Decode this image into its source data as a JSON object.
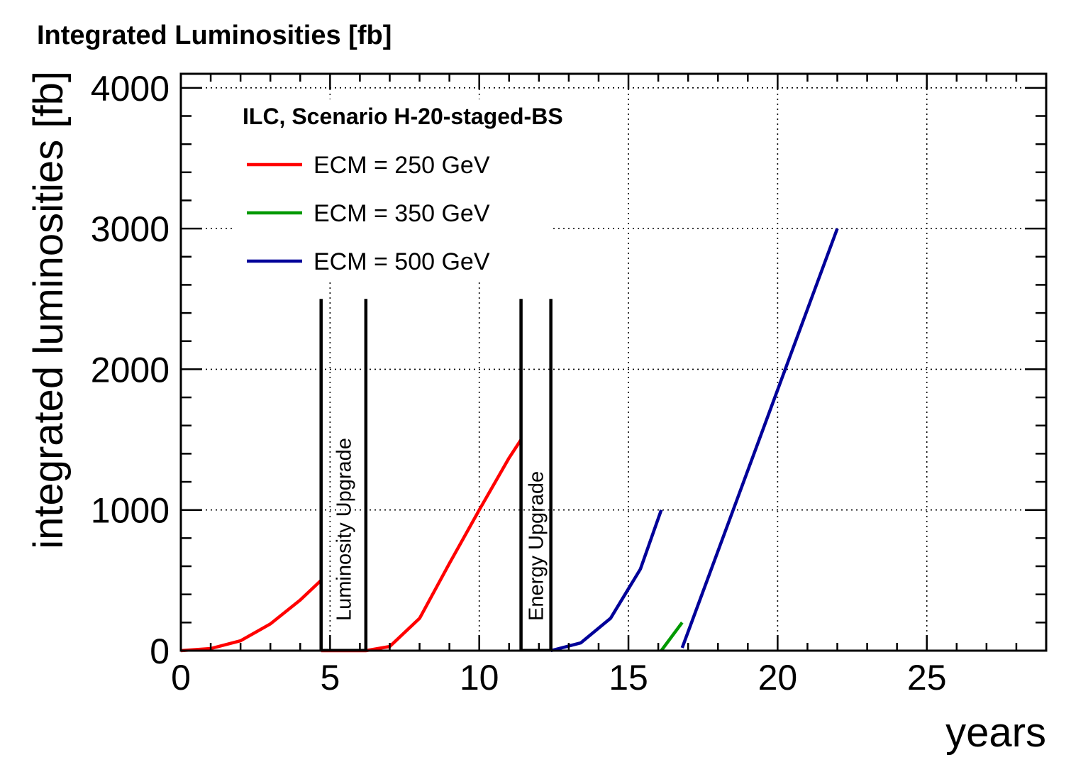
{
  "chart_data": {
    "type": "line",
    "title": "Integrated Luminosities  [fb]",
    "xlabel": "years",
    "ylabel": "integrated luminosities  [fb]",
    "xlim": [
      0,
      29
    ],
    "ylim": [
      0,
      4100
    ],
    "x_ticks": [
      0,
      5,
      10,
      15,
      20,
      25
    ],
    "y_ticks": [
      0,
      1000,
      2000,
      3000,
      4000
    ],
    "grid": true,
    "legend_title": "ILC, Scenario H-20-staged-BS",
    "legend_position": "top-left",
    "series": [
      {
        "name": "ECM = 250 GeV",
        "color": "#ff0000",
        "segments": [
          [
            [
              0,
              0
            ],
            [
              1,
              15
            ],
            [
              2,
              70
            ],
            [
              3,
              190
            ],
            [
              4,
              360
            ],
            [
              4.7,
              500
            ]
          ],
          [
            [
              4.7,
              0
            ],
            [
              6.2,
              0
            ],
            [
              7,
              30
            ],
            [
              8,
              230
            ],
            [
              9,
              620
            ],
            [
              10,
              1000
            ],
            [
              11,
              1370
            ],
            [
              11.4,
              1500
            ]
          ]
        ]
      },
      {
        "name": "ECM = 350 GeV",
        "color": "#009900",
        "segments": [
          [
            [
              16.1,
              0
            ],
            [
              16.8,
              200
            ]
          ]
        ]
      },
      {
        "name": "ECM = 500 GeV",
        "color": "#000099",
        "segments": [
          [
            [
              12.4,
              0
            ],
            [
              13.4,
              55
            ],
            [
              14.4,
              230
            ],
            [
              15.4,
              580
            ],
            [
              16.1,
              1000
            ]
          ],
          [
            [
              16.8,
              20
            ],
            [
              22,
              3000
            ]
          ]
        ]
      }
    ],
    "annotations": [
      {
        "text": "Luminosity Upgrade",
        "x_start": 4.7,
        "x_end": 6.2,
        "height": 2500
      },
      {
        "text": "Energy Upgrade",
        "x_start": 11.4,
        "x_end": 12.4,
        "height": 2500
      }
    ]
  }
}
